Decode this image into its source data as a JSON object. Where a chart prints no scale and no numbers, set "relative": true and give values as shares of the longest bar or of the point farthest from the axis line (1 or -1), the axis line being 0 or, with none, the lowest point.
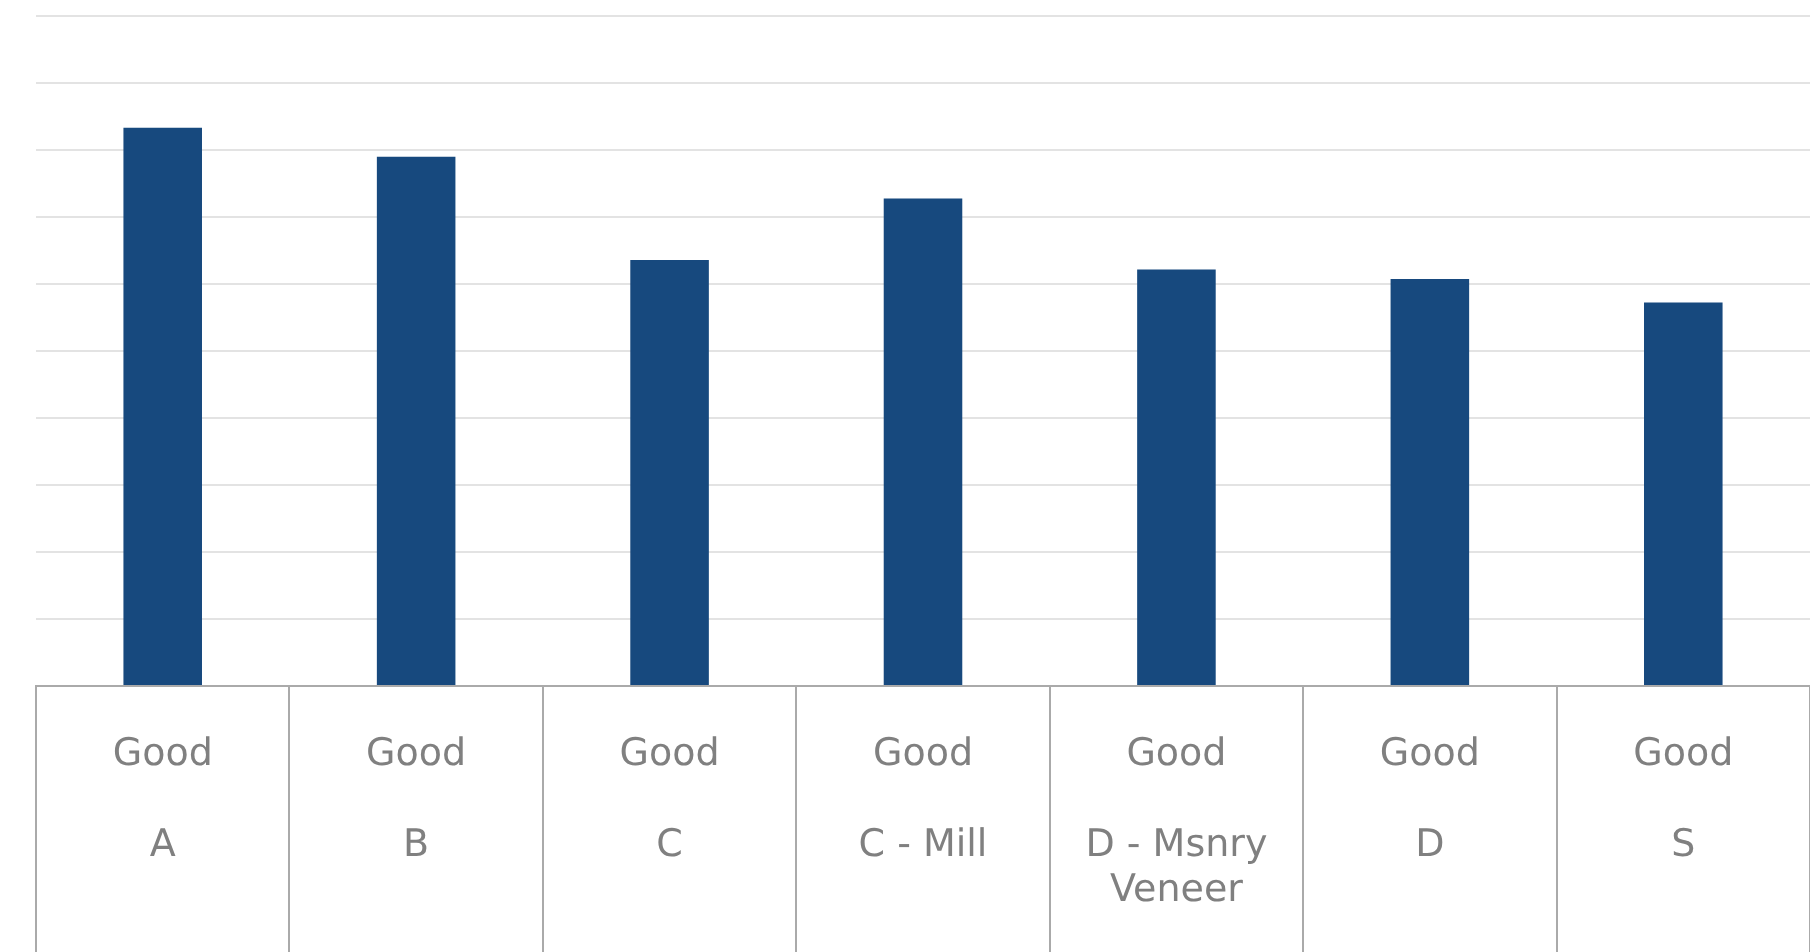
{
  "chart_data": {
    "type": "bar",
    "relative": true,
    "grid": "y",
    "legend": false,
    "categories": [
      "Good\nA",
      "Good\nB",
      "Good\nC",
      "Good\nC - Mill",
      "Good\nD - Msnry Veneer",
      "Good\nD",
      "Good\nS"
    ],
    "values": [
      1,
      0.948,
      0.763,
      0.873,
      0.746,
      0.729,
      0.687
    ],
    "color": "#17497e"
  }
}
